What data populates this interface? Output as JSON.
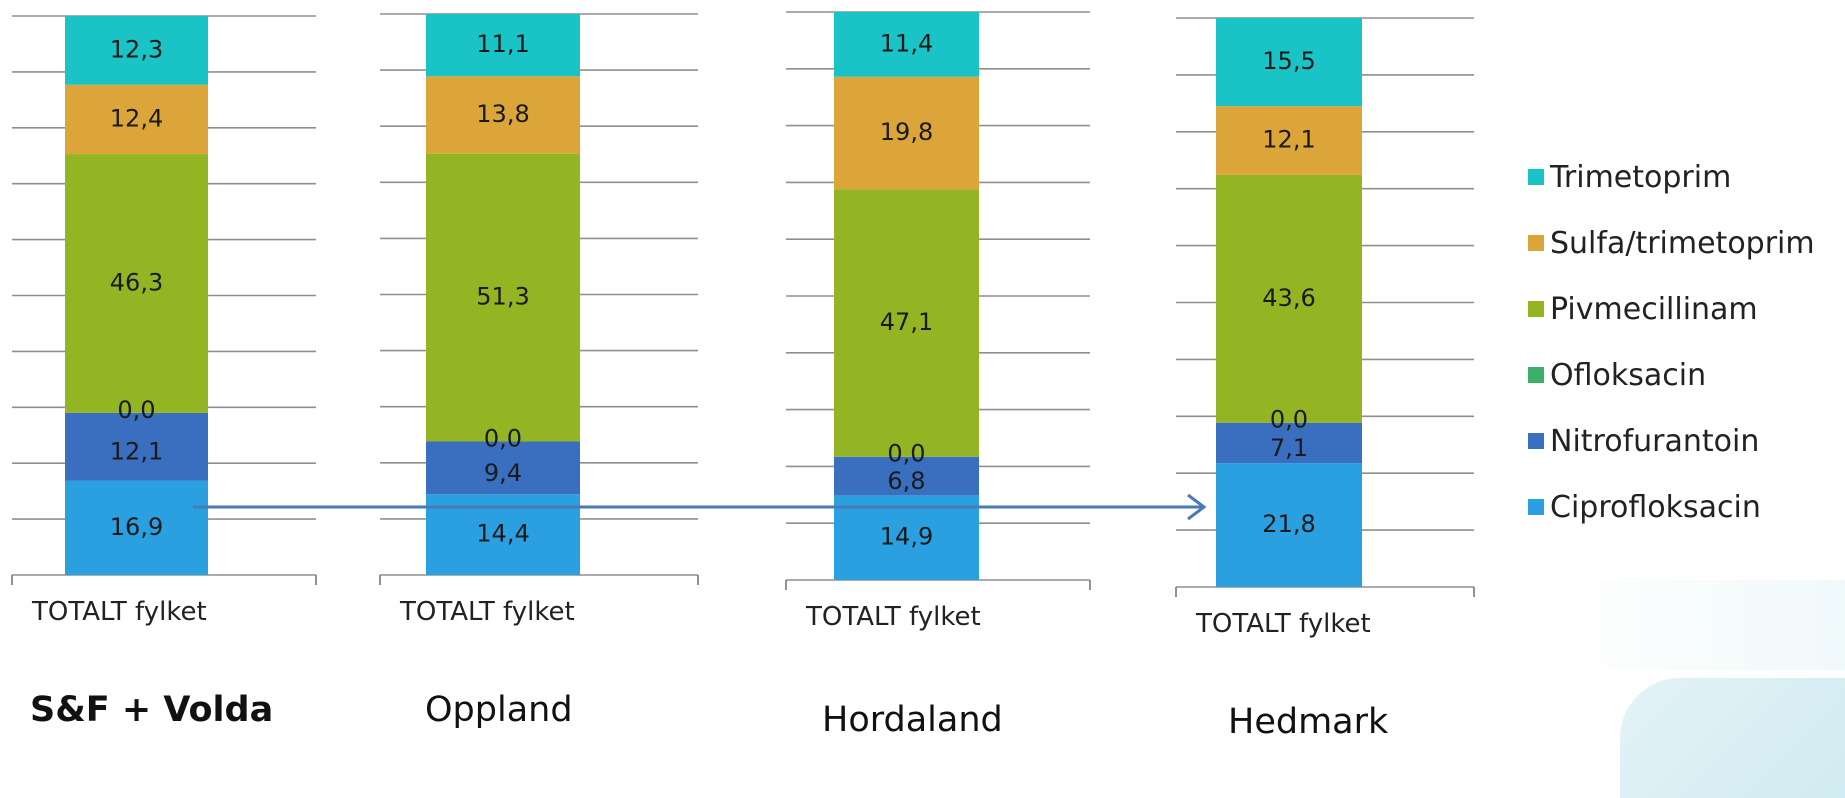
{
  "chart_data": {
    "type": "bar",
    "stacked": true,
    "categories": [
      "TOTALT fylket"
    ],
    "series_order": [
      "Ciprofloksacin",
      "Nitrofurantoin",
      "Ofloksacin",
      "Pivmecillinam",
      "Sulfa/trimetoprim",
      "Trimetoprim"
    ],
    "colors": {
      "Trimetoprim": "#19c3c6",
      "Sulfa/trimetoprim": "#dba53a",
      "Pivmecillinam": "#93b524",
      "Ofloksacin": "#3daf68",
      "Nitrofurantoin": "#3a6fc0",
      "Ciprofloksacin": "#2ba0e0"
    },
    "legend": [
      "Trimetoprim",
      "Sulfa/trimetoprim",
      "Pivmecillinam",
      "Ofloksacin",
      "Nitrofurantoin",
      "Ciprofloksacin"
    ],
    "legend_position": "right",
    "grid": true,
    "panels": [
      {
        "region": "S&F + Volda",
        "category": "TOTALT fylket",
        "values": {
          "Ciprofloksacin": 16.9,
          "Nitrofurantoin": 12.1,
          "Ofloksacin": 0.0,
          "Pivmecillinam": 46.3,
          "Sulfa/trimetoprim": 12.4,
          "Trimetoprim": 12.3
        },
        "labels": {
          "Ciprofloksacin": "16,9",
          "Nitrofurantoin": "12,1",
          "Ofloksacin": "0,0",
          "Pivmecillinam": "46,3",
          "Sulfa/trimetoprim": "12,4",
          "Trimetoprim": "12,3"
        }
      },
      {
        "region": "Oppland",
        "category": "TOTALT fylket",
        "values": {
          "Ciprofloksacin": 14.4,
          "Nitrofurantoin": 9.4,
          "Ofloksacin": 0.0,
          "Pivmecillinam": 51.3,
          "Sulfa/trimetoprim": 13.8,
          "Trimetoprim": 11.1
        },
        "labels": {
          "Ciprofloksacin": "14,4",
          "Nitrofurantoin": "9,4",
          "Ofloksacin": "0,0",
          "Pivmecillinam": "51,3",
          "Sulfa/trimetoprim": "13,8",
          "Trimetoprim": "11,1"
        }
      },
      {
        "region": "Hordaland",
        "category": "TOTALT fylket",
        "values": {
          "Ciprofloksacin": 14.9,
          "Nitrofurantoin": 6.8,
          "Ofloksacin": 0.0,
          "Pivmecillinam": 47.1,
          "Sulfa/trimetoprim": 19.8,
          "Trimetoprim": 11.4
        },
        "labels": {
          "Ciprofloksacin": "14,9",
          "Nitrofurantoin": "6,8",
          "Ofloksacin": "0,0",
          "Pivmecillinam": "47,1",
          "Sulfa/trimetoprim": "19,8",
          "Trimetoprim": "11,4"
        }
      },
      {
        "region": "Hedmark",
        "category": "TOTALT fylket",
        "values": {
          "Ciprofloksacin": 21.8,
          "Nitrofurantoin": 7.1,
          "Ofloksacin": 0.0,
          "Pivmecillinam": 43.6,
          "Sulfa/trimetoprim": 12.1,
          "Trimetoprim": 15.5
        },
        "labels": {
          "Ciprofloksacin": "21,8",
          "Nitrofurantoin": "7,1",
          "Ofloksacin": "0,0",
          "Pivmecillinam": "43,6",
          "Sulfa/trimetoprim": "12,1",
          "Trimetoprim": "15,5"
        }
      }
    ],
    "annotations": [
      {
        "type": "arrow",
        "from_panel": "S&F + Volda",
        "to_panel": "Hedmark",
        "series": "Ciprofloksacin"
      }
    ]
  }
}
